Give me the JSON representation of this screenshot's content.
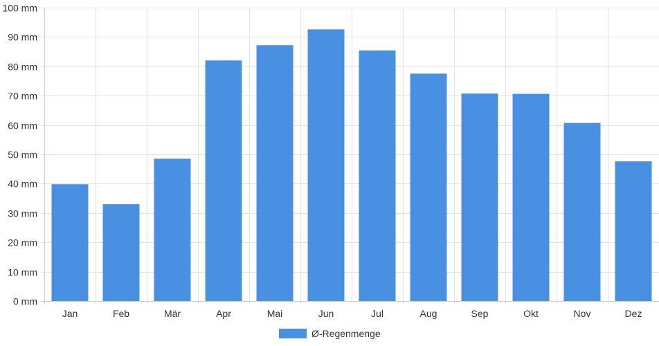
{
  "chart_data": {
    "type": "bar",
    "title": "",
    "xlabel": "",
    "ylabel": "",
    "categories": [
      "Jan",
      "Feb",
      "Mär",
      "Apr",
      "Mai",
      "Jun",
      "Jul",
      "Aug",
      "Sep",
      "Okt",
      "Nov",
      "Dez"
    ],
    "series": [
      {
        "name": "Ø-Regenmenge",
        "color": "#4a90e2",
        "values": [
          39.8,
          33.0,
          48.5,
          82.0,
          87.2,
          92.6,
          85.4,
          77.5,
          70.7,
          70.6,
          60.7,
          47.6
        ]
      }
    ],
    "ylim": [
      0,
      100
    ],
    "y_ticks": [
      "0 mm",
      "10 mm",
      "20 mm",
      "30 mm",
      "40 mm",
      "50 mm",
      "60 mm",
      "70 mm",
      "80 mm",
      "90 mm",
      "100 mm"
    ],
    "grid": true,
    "legend_position": "bottom-center",
    "grid_color": "#e3e3e3",
    "axis_color": "#cccccc"
  }
}
